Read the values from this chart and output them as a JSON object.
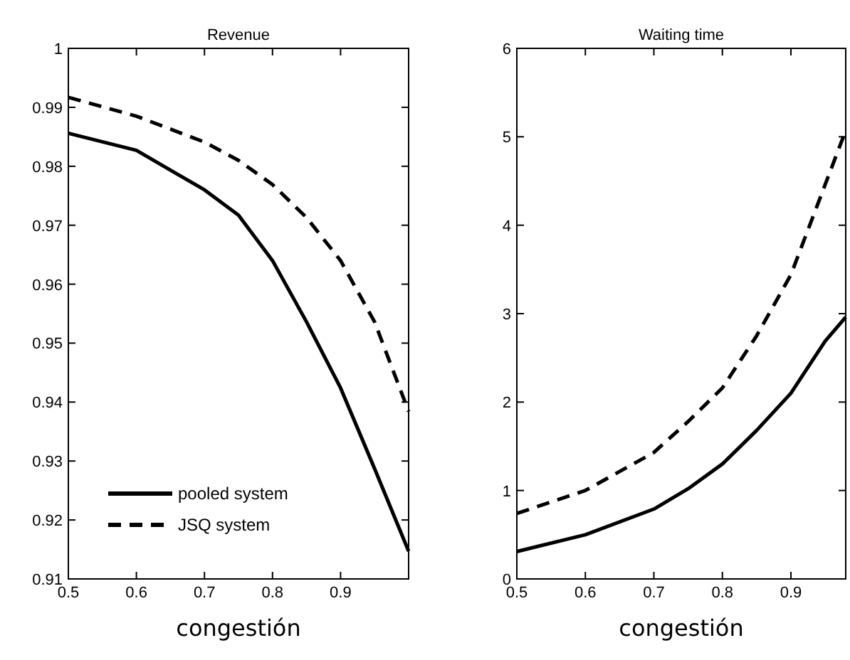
{
  "chart_data": [
    {
      "type": "line",
      "title": "Revenue",
      "xlabel": "congestión",
      "x": [
        0.5,
        0.6,
        0.7,
        0.75,
        0.8,
        0.85,
        0.9,
        0.95,
        1
      ],
      "xlim": [
        0.5,
        1
      ],
      "ylim": [
        0.91,
        1
      ],
      "xticks": [
        0.5,
        0.6,
        0.7,
        0.8,
        0.9
      ],
      "yticks": [
        0.91,
        0.92,
        0.93,
        0.94,
        0.95,
        0.96,
        0.97,
        0.98,
        0.99,
        1
      ],
      "legend": "bottom left",
      "grid": false,
      "marker": "none",
      "series": [
        {
          "name": "pooled system",
          "color": "#000000",
          "line_style": "solid",
          "values": [
            0.9856,
            0.9827,
            0.976,
            0.9717,
            0.964,
            0.9536,
            0.9424,
            0.9287,
            0.9147
          ]
        },
        {
          "name": "JSQ system",
          "color": "#000000",
          "line_style": "dashed",
          "values": [
            0.9917,
            0.9885,
            0.9841,
            0.981,
            0.9769,
            0.9713,
            0.964,
            0.9536,
            0.9384
          ]
        }
      ]
    },
    {
      "type": "line",
      "title": "Waiting time",
      "xlabel": "congestión",
      "x": [
        0.5,
        0.6,
        0.7,
        0.75,
        0.8,
        0.85,
        0.9,
        0.95,
        0.98
      ],
      "xlim": [
        0.5,
        0.98
      ],
      "ylim": [
        0,
        6
      ],
      "xticks": [
        0.5,
        0.6,
        0.7,
        0.8,
        0.9
      ],
      "yticks": [
        0,
        1,
        2,
        3,
        4,
        5,
        6
      ],
      "legend": false,
      "grid": false,
      "marker": "none",
      "series": [
        {
          "color": "#000000",
          "line_style": "solid",
          "values": [
            0.31,
            0.5,
            0.79,
            1.02,
            1.3,
            1.68,
            2.1,
            2.69,
            2.96
          ]
        },
        {
          "color": "#000000",
          "line_style": "dashed",
          "values": [
            0.74,
            1.0,
            1.43,
            1.78,
            2.16,
            2.75,
            3.44,
            4.46,
            5.07
          ]
        }
      ]
    }
  ]
}
